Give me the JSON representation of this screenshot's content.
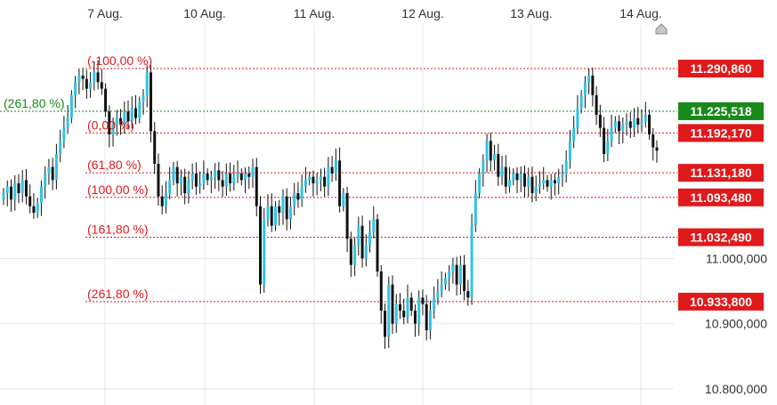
{
  "chart_data": {
    "type": "candlestick",
    "x_axis": {
      "labels": [
        "7 Aug.",
        "10 Aug.",
        "11 Aug.",
        "12 Aug.",
        "13 Aug.",
        "14 Aug."
      ]
    },
    "y_axis": {
      "ticks": [
        {
          "value": 11000000,
          "label": "11.000,000"
        },
        {
          "value": 10900000,
          "label": "10.900,000"
        },
        {
          "value": 10800000,
          "label": "10.800,000"
        }
      ],
      "range": [
        10785000,
        11355000
      ]
    },
    "levels": [
      {
        "label": "(-100,00 %)",
        "value": 11290860,
        "tag": "11.290,860",
        "color": "#e0191b"
      },
      {
        "label": "(261,80 %)",
        "value": 11225518,
        "tag": "11.225,518",
        "color": "#178a1a"
      },
      {
        "label": "(0,00 %)",
        "value": 11192170,
        "tag": "11.192,170",
        "color": "#e0191b"
      },
      {
        "label": "(61,80 %)",
        "value": 11131180,
        "tag": "11.131,180",
        "color": "#e0191b"
      },
      {
        "label": "(100,00 %)",
        "value": 11093480,
        "tag": "11.093,480",
        "color": "#e0191b"
      },
      {
        "label": "(161,80 %)",
        "value": 11032490,
        "tag": "11.032,490",
        "color": "#e0191b"
      },
      {
        "label": "(261,80 %)",
        "value": 10933800,
        "tag": "10.933,800",
        "color": "#e0191b"
      }
    ],
    "series": [
      {
        "closes": [
          11100000,
          11110000,
          11090000,
          11115000,
          11100000,
          11120000,
          11095000,
          11080000,
          11070000,
          11085000,
          11110000,
          11130000,
          11140000,
          11120000,
          11160000,
          11180000,
          11200000,
          11215000,
          11250000,
          11270000,
          11280000,
          11275000,
          11260000,
          11270000,
          11285000,
          11270000,
          11260000,
          11225000,
          11190000,
          11205000,
          11215000,
          11205000,
          11225000,
          11210000,
          11230000,
          11215000,
          11240000,
          11250000,
          11285000,
          11195000,
          11145000,
          11095000,
          11080000,
          11100000,
          11120000,
          11140000,
          11115000,
          11125000,
          11100000,
          11120000,
          11130000,
          11110000,
          11115000,
          11130000,
          11120000,
          11125000,
          11135000,
          11120000,
          11110000,
          11130000,
          11115000,
          11125000,
          11130000,
          11120000,
          11130000,
          11125000,
          11140000,
          11080000,
          10960000,
          11060000,
          11080000,
          11050000,
          11080000,
          11070000,
          11095000,
          11060000,
          11080000,
          11100000,
          11090000,
          11110000,
          11120000,
          11125000,
          11115000,
          11120000,
          11125000,
          11110000,
          11140000,
          11130000,
          11150000,
          11080000,
          11100000,
          11030000,
          10990000,
          11020000,
          11050000,
          11000000,
          11020000,
          11040000,
          11060000,
          10980000,
          10920000,
          10880000,
          10960000,
          10900000,
          10930000,
          10920000,
          10910000,
          10940000,
          10920000,
          10900000,
          10940000,
          10930000,
          10890000,
          10920000,
          10940000,
          10950000,
          10960000,
          10970000,
          10980000,
          10990000,
          10960000,
          10990000,
          10950000,
          10940000,
          11050000,
          11100000,
          11130000,
          11150000,
          11180000,
          11150000,
          11160000,
          11125000,
          11140000,
          11110000,
          11120000,
          11130000,
          11120000,
          11130000,
          11110000,
          11125000,
          11100000,
          11110000,
          11115000,
          11120000,
          11110000,
          11120000,
          11115000,
          11125000,
          11130000,
          11150000,
          11180000,
          11200000,
          11230000,
          11250000,
          11270000,
          11280000,
          11250000,
          11220000,
          11200000,
          11160000,
          11180000,
          11200000,
          11210000,
          11195000,
          11205000,
          11210000,
          11200000,
          11215000,
          11205000,
          11210000,
          11220000,
          11190000,
          11170000,
          11165000
        ]
      }
    ]
  },
  "colors": {
    "up": "#2fc3e6",
    "down": "#111111",
    "level_red": "#e0191b",
    "level_green": "#178a1a",
    "grid": "#e6e6e6"
  }
}
